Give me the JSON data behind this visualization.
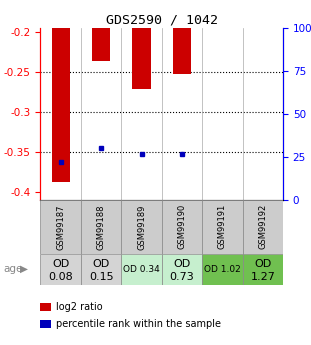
{
  "title": "GDS2590 / 1042",
  "samples": [
    "GSM99187",
    "GSM99188",
    "GSM99189",
    "GSM99190",
    "GSM99191",
    "GSM99192"
  ],
  "log2_ratios": [
    -0.388,
    -0.237,
    -0.272,
    -0.253,
    null,
    null
  ],
  "percentile_ranks": [
    22,
    30,
    27,
    27,
    null,
    null
  ],
  "od_values": [
    [
      "OD",
      "0.08"
    ],
    [
      "OD",
      "0.15"
    ],
    [
      "OD 0.34",
      ""
    ],
    [
      "OD",
      "0.73"
    ],
    [
      "OD 1.02",
      ""
    ],
    [
      "OD",
      "1.27"
    ]
  ],
  "od_bg_colors": [
    "#d4d4d4",
    "#d4d4d4",
    "#c6efce",
    "#c6efce",
    "#70c050",
    "#70c050"
  ],
  "od_font_sizes": [
    8,
    8,
    6.5,
    8,
    6.5,
    8
  ],
  "od_large": [
    true,
    true,
    false,
    true,
    false,
    true
  ],
  "ylim_left": [
    -0.41,
    -0.195
  ],
  "ylim_right": [
    0,
    100
  ],
  "yticks_left": [
    -0.4,
    -0.35,
    -0.3,
    -0.25,
    -0.2
  ],
  "yticks_right": [
    0,
    25,
    50,
    75,
    100
  ],
  "ytick_labels_right": [
    "0",
    "25",
    "50",
    "75",
    "100%"
  ],
  "bar_color": "#cc0000",
  "dot_color": "#0000bb",
  "bg_plot": "#ffffff",
  "label_log2": "log2 ratio",
  "label_pct": "percentile rank within the sample",
  "bar_width": 0.45
}
